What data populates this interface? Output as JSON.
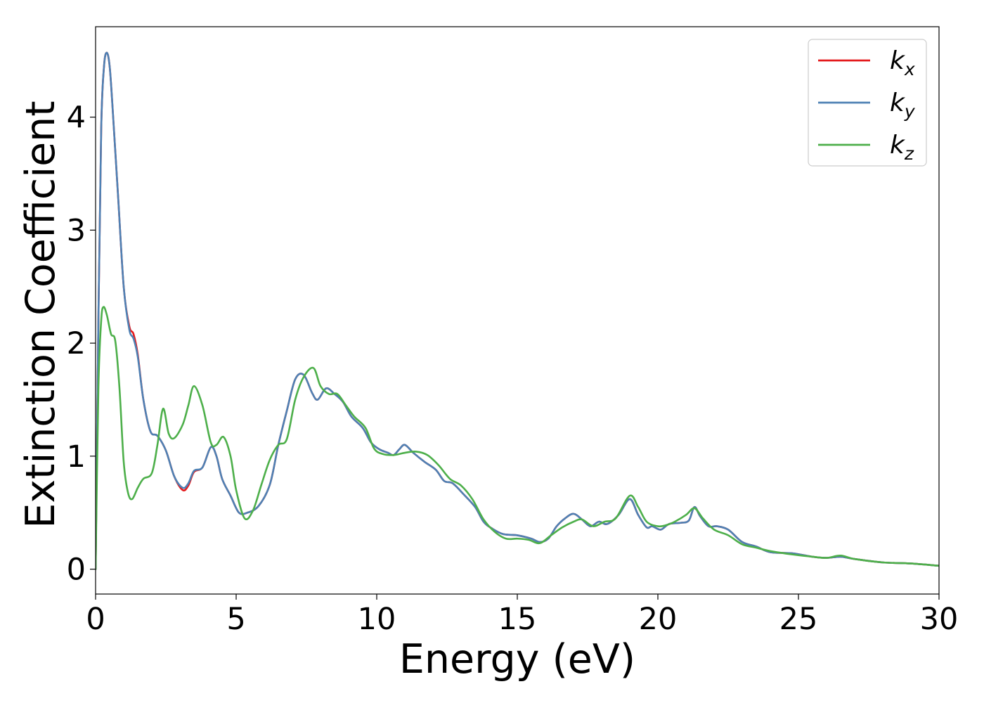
{
  "chart_data": {
    "type": "line",
    "xlabel": "Energy (eV)",
    "ylabel": "Extinction Coefficient",
    "xlim": [
      0,
      30
    ],
    "ylim": [
      -0.22,
      4.8
    ],
    "xticks": [
      "0",
      "5",
      "10",
      "15",
      "20",
      "25",
      "30"
    ],
    "yticks": [
      "0",
      "1",
      "2",
      "3",
      "4"
    ],
    "grid": false,
    "legend_position": "top-right",
    "series": [
      {
        "name": "k_x",
        "legend_base": "k",
        "legend_sub": "x",
        "color": "#e41a1c",
        "points": [
          [
            0,
            0
          ],
          [
            0.1,
            2.2
          ],
          [
            0.2,
            3.9
          ],
          [
            0.3,
            4.45
          ],
          [
            0.4,
            4.57
          ],
          [
            0.5,
            4.45
          ],
          [
            0.6,
            4.1
          ],
          [
            0.8,
            3.3
          ],
          [
            1.0,
            2.5
          ],
          [
            1.2,
            2.15
          ],
          [
            1.35,
            2.08
          ],
          [
            1.5,
            1.9
          ],
          [
            1.7,
            1.5
          ],
          [
            1.95,
            1.22
          ],
          [
            2.2,
            1.18
          ],
          [
            2.5,
            1.05
          ],
          [
            2.8,
            0.82
          ],
          [
            3.1,
            0.7
          ],
          [
            3.3,
            0.74
          ],
          [
            3.5,
            0.86
          ],
          [
            3.8,
            0.9
          ],
          [
            4.1,
            1.08
          ],
          [
            4.3,
            1.0
          ],
          [
            4.5,
            0.8
          ],
          [
            4.8,
            0.65
          ],
          [
            5.1,
            0.5
          ],
          [
            5.4,
            0.5
          ],
          [
            5.8,
            0.56
          ],
          [
            6.2,
            0.75
          ],
          [
            6.5,
            1.1
          ],
          [
            6.8,
            1.4
          ],
          [
            7.1,
            1.68
          ],
          [
            7.4,
            1.72
          ],
          [
            7.7,
            1.56
          ],
          [
            7.9,
            1.5
          ],
          [
            8.2,
            1.6
          ],
          [
            8.5,
            1.55
          ],
          [
            8.8,
            1.48
          ],
          [
            9.1,
            1.35
          ],
          [
            9.5,
            1.25
          ],
          [
            9.8,
            1.12
          ],
          [
            10.1,
            1.06
          ],
          [
            10.4,
            1.03
          ],
          [
            10.6,
            1.01
          ],
          [
            10.8,
            1.06
          ],
          [
            11.0,
            1.1
          ],
          [
            11.3,
            1.03
          ],
          [
            11.7,
            0.95
          ],
          [
            12.1,
            0.88
          ],
          [
            12.4,
            0.78
          ],
          [
            12.7,
            0.76
          ],
          [
            13.1,
            0.66
          ],
          [
            13.5,
            0.55
          ],
          [
            13.8,
            0.42
          ],
          [
            14.1,
            0.36
          ],
          [
            14.5,
            0.31
          ],
          [
            15.0,
            0.3
          ],
          [
            15.5,
            0.27
          ],
          [
            15.8,
            0.24
          ],
          [
            16.1,
            0.27
          ],
          [
            16.4,
            0.38
          ],
          [
            16.7,
            0.45
          ],
          [
            17.0,
            0.49
          ],
          [
            17.3,
            0.44
          ],
          [
            17.6,
            0.38
          ],
          [
            17.9,
            0.42
          ],
          [
            18.2,
            0.4
          ],
          [
            18.6,
            0.48
          ],
          [
            19.0,
            0.62
          ],
          [
            19.3,
            0.48
          ],
          [
            19.6,
            0.37
          ],
          [
            19.8,
            0.38
          ],
          [
            20.1,
            0.35
          ],
          [
            20.4,
            0.4
          ],
          [
            20.8,
            0.41
          ],
          [
            21.1,
            0.43
          ],
          [
            21.3,
            0.55
          ],
          [
            21.5,
            0.47
          ],
          [
            21.8,
            0.38
          ],
          [
            22.1,
            0.38
          ],
          [
            22.5,
            0.35
          ],
          [
            23.0,
            0.24
          ],
          [
            23.5,
            0.2
          ],
          [
            24.0,
            0.15
          ],
          [
            24.8,
            0.14
          ],
          [
            25.5,
            0.11
          ],
          [
            26.0,
            0.1
          ],
          [
            26.5,
            0.11
          ],
          [
            27.0,
            0.09
          ],
          [
            28.0,
            0.06
          ],
          [
            29.0,
            0.05
          ],
          [
            30.0,
            0.03
          ]
        ]
      },
      {
        "name": "k_y",
        "legend_base": "k",
        "legend_sub": "y",
        "color": "#4e81b4",
        "points": [
          [
            0,
            0
          ],
          [
            0.1,
            2.2
          ],
          [
            0.2,
            3.9
          ],
          [
            0.3,
            4.45
          ],
          [
            0.4,
            4.57
          ],
          [
            0.5,
            4.45
          ],
          [
            0.6,
            4.1
          ],
          [
            0.8,
            3.3
          ],
          [
            1.0,
            2.5
          ],
          [
            1.2,
            2.12
          ],
          [
            1.35,
            2.04
          ],
          [
            1.5,
            1.88
          ],
          [
            1.7,
            1.5
          ],
          [
            1.95,
            1.22
          ],
          [
            2.2,
            1.18
          ],
          [
            2.5,
            1.05
          ],
          [
            2.8,
            0.82
          ],
          [
            3.1,
            0.72
          ],
          [
            3.3,
            0.76
          ],
          [
            3.5,
            0.87
          ],
          [
            3.8,
            0.9
          ],
          [
            4.1,
            1.08
          ],
          [
            4.3,
            1.0
          ],
          [
            4.5,
            0.8
          ],
          [
            4.8,
            0.65
          ],
          [
            5.1,
            0.5
          ],
          [
            5.4,
            0.5
          ],
          [
            5.8,
            0.56
          ],
          [
            6.2,
            0.75
          ],
          [
            6.5,
            1.1
          ],
          [
            6.8,
            1.4
          ],
          [
            7.1,
            1.68
          ],
          [
            7.4,
            1.72
          ],
          [
            7.7,
            1.56
          ],
          [
            7.9,
            1.5
          ],
          [
            8.2,
            1.6
          ],
          [
            8.5,
            1.55
          ],
          [
            8.8,
            1.48
          ],
          [
            9.1,
            1.35
          ],
          [
            9.5,
            1.25
          ],
          [
            9.8,
            1.12
          ],
          [
            10.1,
            1.06
          ],
          [
            10.4,
            1.03
          ],
          [
            10.6,
            1.01
          ],
          [
            10.8,
            1.06
          ],
          [
            11.0,
            1.1
          ],
          [
            11.3,
            1.03
          ],
          [
            11.7,
            0.95
          ],
          [
            12.1,
            0.88
          ],
          [
            12.4,
            0.78
          ],
          [
            12.7,
            0.76
          ],
          [
            13.1,
            0.66
          ],
          [
            13.5,
            0.55
          ],
          [
            13.8,
            0.42
          ],
          [
            14.1,
            0.36
          ],
          [
            14.5,
            0.31
          ],
          [
            15.0,
            0.3
          ],
          [
            15.5,
            0.27
          ],
          [
            15.8,
            0.24
          ],
          [
            16.1,
            0.27
          ],
          [
            16.4,
            0.38
          ],
          [
            16.7,
            0.45
          ],
          [
            17.0,
            0.49
          ],
          [
            17.3,
            0.44
          ],
          [
            17.6,
            0.38
          ],
          [
            17.9,
            0.42
          ],
          [
            18.2,
            0.4
          ],
          [
            18.6,
            0.48
          ],
          [
            19.0,
            0.62
          ],
          [
            19.3,
            0.48
          ],
          [
            19.6,
            0.37
          ],
          [
            19.8,
            0.38
          ],
          [
            20.1,
            0.35
          ],
          [
            20.4,
            0.4
          ],
          [
            20.8,
            0.41
          ],
          [
            21.1,
            0.43
          ],
          [
            21.3,
            0.55
          ],
          [
            21.5,
            0.47
          ],
          [
            21.8,
            0.38
          ],
          [
            22.1,
            0.38
          ],
          [
            22.5,
            0.35
          ],
          [
            23.0,
            0.24
          ],
          [
            23.5,
            0.2
          ],
          [
            24.0,
            0.15
          ],
          [
            24.8,
            0.14
          ],
          [
            25.5,
            0.11
          ],
          [
            26.0,
            0.1
          ],
          [
            26.5,
            0.11
          ],
          [
            27.0,
            0.09
          ],
          [
            28.0,
            0.06
          ],
          [
            29.0,
            0.05
          ],
          [
            30.0,
            0.03
          ]
        ]
      },
      {
        "name": "k_z",
        "legend_base": "k",
        "legend_sub": "z",
        "color": "#4daf4a",
        "points": [
          [
            0,
            0
          ],
          [
            0.1,
            1.6
          ],
          [
            0.2,
            2.2
          ],
          [
            0.28,
            2.32
          ],
          [
            0.4,
            2.25
          ],
          [
            0.55,
            2.08
          ],
          [
            0.7,
            2.02
          ],
          [
            0.85,
            1.6
          ],
          [
            1.0,
            0.95
          ],
          [
            1.15,
            0.68
          ],
          [
            1.3,
            0.62
          ],
          [
            1.5,
            0.72
          ],
          [
            1.7,
            0.8
          ],
          [
            2.0,
            0.85
          ],
          [
            2.2,
            1.1
          ],
          [
            2.4,
            1.42
          ],
          [
            2.6,
            1.2
          ],
          [
            2.8,
            1.16
          ],
          [
            3.1,
            1.28
          ],
          [
            3.3,
            1.45
          ],
          [
            3.5,
            1.62
          ],
          [
            3.8,
            1.45
          ],
          [
            4.1,
            1.12
          ],
          [
            4.3,
            1.1
          ],
          [
            4.55,
            1.17
          ],
          [
            4.8,
            1.0
          ],
          [
            5.0,
            0.7
          ],
          [
            5.3,
            0.45
          ],
          [
            5.6,
            0.52
          ],
          [
            5.9,
            0.75
          ],
          [
            6.2,
            0.97
          ],
          [
            6.5,
            1.1
          ],
          [
            6.8,
            1.15
          ],
          [
            7.1,
            1.5
          ],
          [
            7.4,
            1.7
          ],
          [
            7.75,
            1.78
          ],
          [
            8.0,
            1.62
          ],
          [
            8.3,
            1.55
          ],
          [
            8.6,
            1.55
          ],
          [
            8.9,
            1.45
          ],
          [
            9.2,
            1.35
          ],
          [
            9.6,
            1.25
          ],
          [
            9.9,
            1.07
          ],
          [
            10.2,
            1.02
          ],
          [
            10.6,
            1.01
          ],
          [
            11.0,
            1.03
          ],
          [
            11.4,
            1.04
          ],
          [
            11.8,
            1.01
          ],
          [
            12.2,
            0.92
          ],
          [
            12.6,
            0.8
          ],
          [
            13.0,
            0.74
          ],
          [
            13.4,
            0.62
          ],
          [
            13.8,
            0.44
          ],
          [
            14.2,
            0.33
          ],
          [
            14.6,
            0.27
          ],
          [
            15.0,
            0.27
          ],
          [
            15.4,
            0.26
          ],
          [
            15.8,
            0.23
          ],
          [
            16.2,
            0.3
          ],
          [
            16.6,
            0.37
          ],
          [
            17.0,
            0.42
          ],
          [
            17.3,
            0.44
          ],
          [
            17.7,
            0.38
          ],
          [
            18.1,
            0.42
          ],
          [
            18.5,
            0.45
          ],
          [
            19.0,
            0.65
          ],
          [
            19.3,
            0.55
          ],
          [
            19.6,
            0.42
          ],
          [
            20.0,
            0.38
          ],
          [
            20.3,
            0.39
          ],
          [
            20.6,
            0.42
          ],
          [
            21.0,
            0.48
          ],
          [
            21.3,
            0.54
          ],
          [
            21.6,
            0.45
          ],
          [
            22.0,
            0.35
          ],
          [
            22.5,
            0.3
          ],
          [
            23.0,
            0.22
          ],
          [
            23.5,
            0.19
          ],
          [
            24.0,
            0.16
          ],
          [
            24.8,
            0.13
          ],
          [
            25.5,
            0.11
          ],
          [
            26.0,
            0.1
          ],
          [
            26.5,
            0.12
          ],
          [
            27.0,
            0.09
          ],
          [
            28.0,
            0.06
          ],
          [
            29.0,
            0.05
          ],
          [
            30.0,
            0.03
          ]
        ]
      }
    ]
  }
}
